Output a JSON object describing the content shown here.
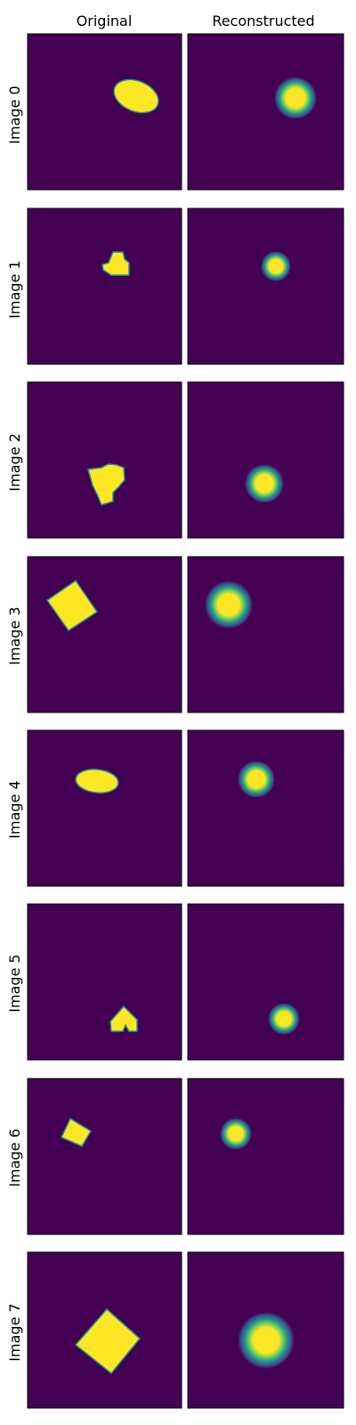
{
  "figure": {
    "column_titles": [
      "Original",
      "Reconstructed"
    ],
    "row_labels": [
      "Image 0",
      "Image 1",
      "Image 2",
      "Image 3",
      "Image 4",
      "Image 5",
      "Image 6",
      "Image 7"
    ],
    "colors": {
      "background": "#440154",
      "foreground": "#FDE725",
      "edge": "#21918C",
      "frame": "#000000"
    }
  }
}
